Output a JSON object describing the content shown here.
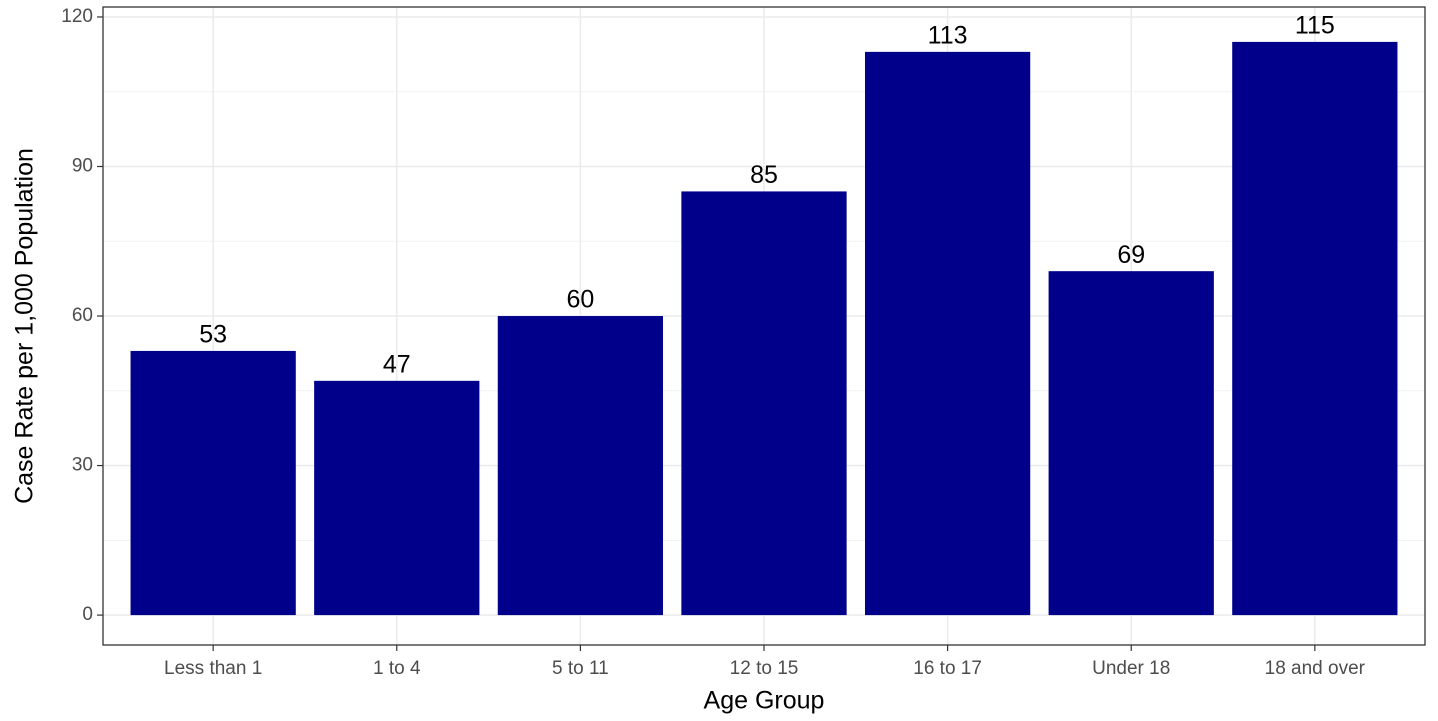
{
  "chart_data": {
    "type": "bar",
    "x_label": "Age Group",
    "y_label": "Case Rate per 1,000 Population",
    "categories": [
      "Less than 1",
      "1 to 4",
      "5 to 11",
      "12 to 15",
      "16 to 17",
      "Under 18",
      "18 and over"
    ],
    "values": [
      53,
      47,
      60,
      85,
      113,
      69,
      115
    ],
    "color": "#00008b",
    "ylim": [
      -6,
      122
    ],
    "yticks": [
      0,
      30,
      60,
      90,
      120
    ],
    "grid": true,
    "minor_grid": true
  }
}
